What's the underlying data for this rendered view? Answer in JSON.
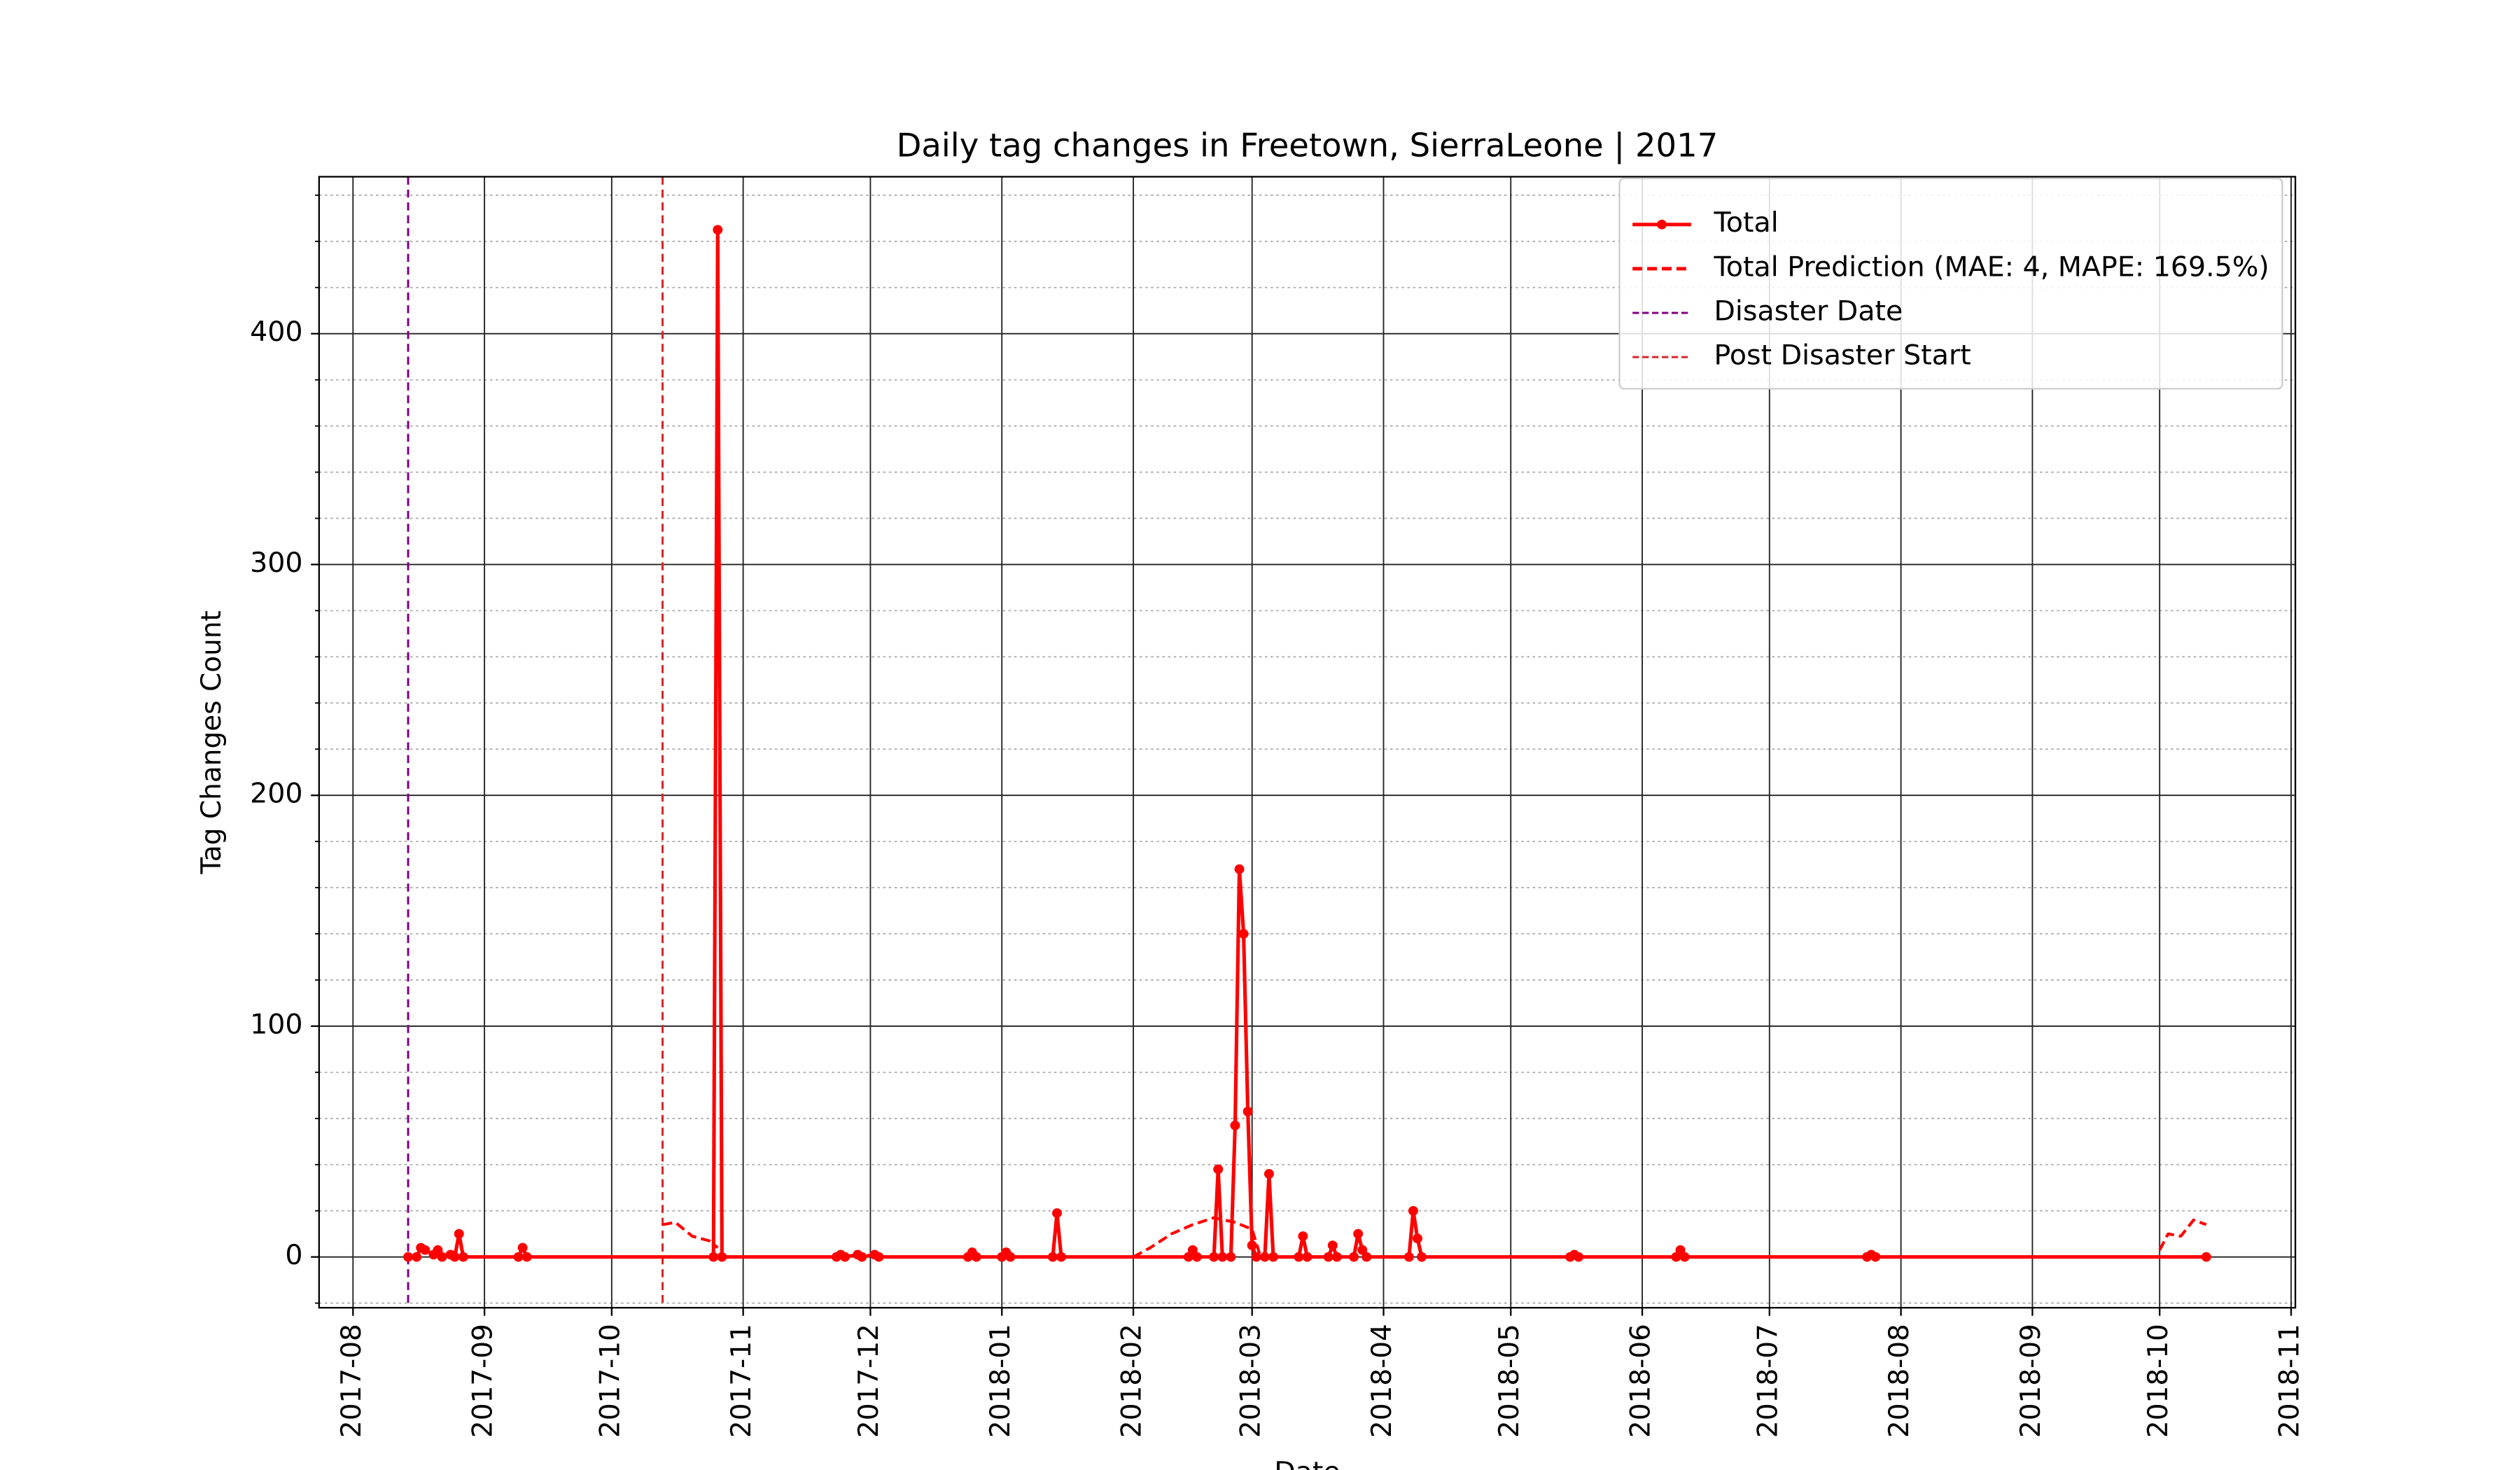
{
  "chart_data": {
    "type": "line",
    "title": "Daily tag changes in Freetown, SierraLeone | 2017",
    "xlabel": "Date",
    "ylabel": "Tag Changes Count",
    "xlim": [
      "2017-07-24",
      "2018-11-02"
    ],
    "xticks": [
      "2017-08",
      "2017-09",
      "2017-10",
      "2017-11",
      "2017-12",
      "2018-01",
      "2018-02",
      "2018-03",
      "2018-04",
      "2018-05",
      "2018-06",
      "2018-07",
      "2018-08",
      "2018-09",
      "2018-10",
      "2018-11"
    ],
    "ylim": [
      -22,
      468
    ],
    "yticks": [
      0,
      100,
      200,
      300,
      400
    ],
    "yminorticks": [
      -20,
      20,
      40,
      60,
      80,
      120,
      140,
      160,
      180,
      220,
      240,
      260,
      280,
      320,
      340,
      360,
      380,
      420,
      440,
      460
    ],
    "grid": true,
    "legend": "upper right",
    "series": [
      {
        "name": "Total",
        "color": "#ff0000",
        "style": "solid",
        "marker": true,
        "x": [
          "2017-08-14",
          "2017-08-16",
          "2017-08-17",
          "2017-08-18",
          "2017-08-20",
          "2017-08-21",
          "2017-08-22",
          "2017-08-24",
          "2017-08-25",
          "2017-08-26",
          "2017-08-27",
          "2017-09-09",
          "2017-09-10",
          "2017-09-11",
          "2017-10-25",
          "2017-10-26",
          "2017-10-27",
          "2017-11-23",
          "2017-11-24",
          "2017-11-25",
          "2017-11-28",
          "2017-11-29",
          "2017-12-02",
          "2017-12-03",
          "2017-12-24",
          "2017-12-25",
          "2017-12-26",
          "2018-01-01",
          "2018-01-02",
          "2018-01-03",
          "2018-01-13",
          "2018-01-14",
          "2018-01-15",
          "2018-02-14",
          "2018-02-15",
          "2018-02-16",
          "2018-02-20",
          "2018-02-21",
          "2018-02-22",
          "2018-02-24",
          "2018-02-25",
          "2018-02-26",
          "2018-02-27",
          "2018-02-28",
          "2018-03-01",
          "2018-03-02",
          "2018-03-04",
          "2018-03-05",
          "2018-03-06",
          "2018-03-12",
          "2018-03-13",
          "2018-03-14",
          "2018-03-19",
          "2018-03-20",
          "2018-03-21",
          "2018-03-25",
          "2018-03-26",
          "2018-03-27",
          "2018-03-28",
          "2018-04-07",
          "2018-04-08",
          "2018-04-09",
          "2018-04-10",
          "2018-05-15",
          "2018-05-16",
          "2018-05-17",
          "2018-06-09",
          "2018-06-10",
          "2018-06-11",
          "2018-07-24",
          "2018-07-25",
          "2018-07-26",
          "2018-10-12"
        ],
        "values": [
          0,
          0,
          4,
          3,
          1,
          3,
          0,
          1,
          0,
          10,
          0,
          0,
          4,
          0,
          0,
          445,
          0,
          0,
          1,
          0,
          1,
          0,
          1,
          0,
          0,
          2,
          0,
          0,
          2,
          0,
          0,
          19,
          0,
          0,
          3,
          0,
          0,
          38,
          0,
          0,
          57,
          168,
          140,
          63,
          5,
          0,
          0,
          36,
          0,
          0,
          9,
          0,
          0,
          5,
          0,
          0,
          10,
          3,
          0,
          0,
          20,
          8,
          0,
          0,
          1,
          0,
          0,
          3,
          0,
          0,
          1,
          0,
          0
        ]
      },
      {
        "name": "Total Prediction (MAE: 4, MAPE: 169.5%)",
        "color": "#ff0000",
        "style": "dashed",
        "marker": false,
        "x": [
          "2017-10-13",
          "2017-10-16",
          "2017-10-20",
          "2017-10-24",
          "2017-10-26",
          "2017-11-10",
          "2018-02-01",
          "2018-02-05",
          "2018-02-10",
          "2018-02-15",
          "2018-02-20",
          "2018-02-25",
          "2018-03-01",
          "2018-03-03",
          "2018-06-01",
          "2018-10-01",
          "2018-10-03",
          "2018-10-06",
          "2018-10-09",
          "2018-10-12"
        ],
        "values": [
          14,
          15,
          9,
          7,
          4,
          null,
          0,
          4,
          10,
          14,
          17,
          15,
          12,
          0,
          null,
          3,
          10,
          9,
          16,
          14
        ]
      }
    ],
    "vlines": [
      {
        "name": "Disaster Date",
        "x": "2017-08-14",
        "color": "#800080"
      },
      {
        "name": "Post Disaster Start",
        "x": "2017-10-13",
        "color": "#d62728"
      }
    ]
  }
}
